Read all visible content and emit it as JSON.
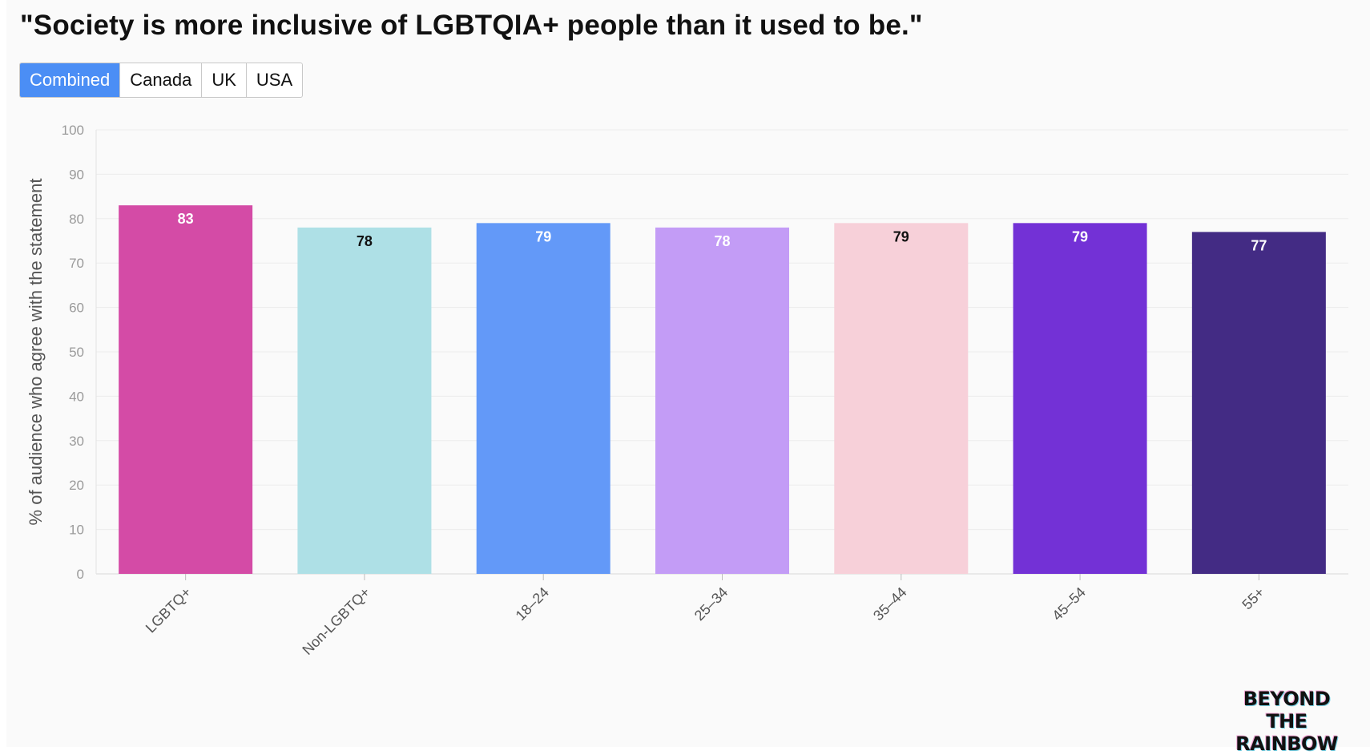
{
  "title": "\"Society is more inclusive of LGBTQIA+ people than it used to be.\"",
  "tabs": [
    {
      "label": "Combined",
      "active": true
    },
    {
      "label": "Canada",
      "active": false
    },
    {
      "label": "UK",
      "active": false
    },
    {
      "label": "USA",
      "active": false
    }
  ],
  "logo": {
    "line1": "BEYOND THE",
    "line2": "RAINBOW"
  },
  "chart_data": {
    "type": "bar",
    "categories": [
      "LGBTQ+",
      "Non-LGBTQ+",
      "18–24",
      "25–34",
      "35–44",
      "45–54",
      "55+"
    ],
    "values": [
      83,
      78,
      79,
      78,
      79,
      79,
      77
    ],
    "colors": [
      "#d44ba6",
      "#aee0e6",
      "#6399f8",
      "#c39cf6",
      "#f7d0d9",
      "#7331d6",
      "#432b84"
    ],
    "label_colors": [
      "#ffffff",
      "#111111",
      "#ffffff",
      "#ffffff",
      "#111111",
      "#ffffff",
      "#ffffff"
    ],
    "title": "",
    "xlabel": "",
    "ylabel": "% of audience who agree with the statement",
    "ylim": [
      0,
      100
    ],
    "yticks": [
      0,
      10,
      20,
      30,
      40,
      50,
      60,
      70,
      80,
      90,
      100
    ],
    "grid": true,
    "legend": "none"
  }
}
